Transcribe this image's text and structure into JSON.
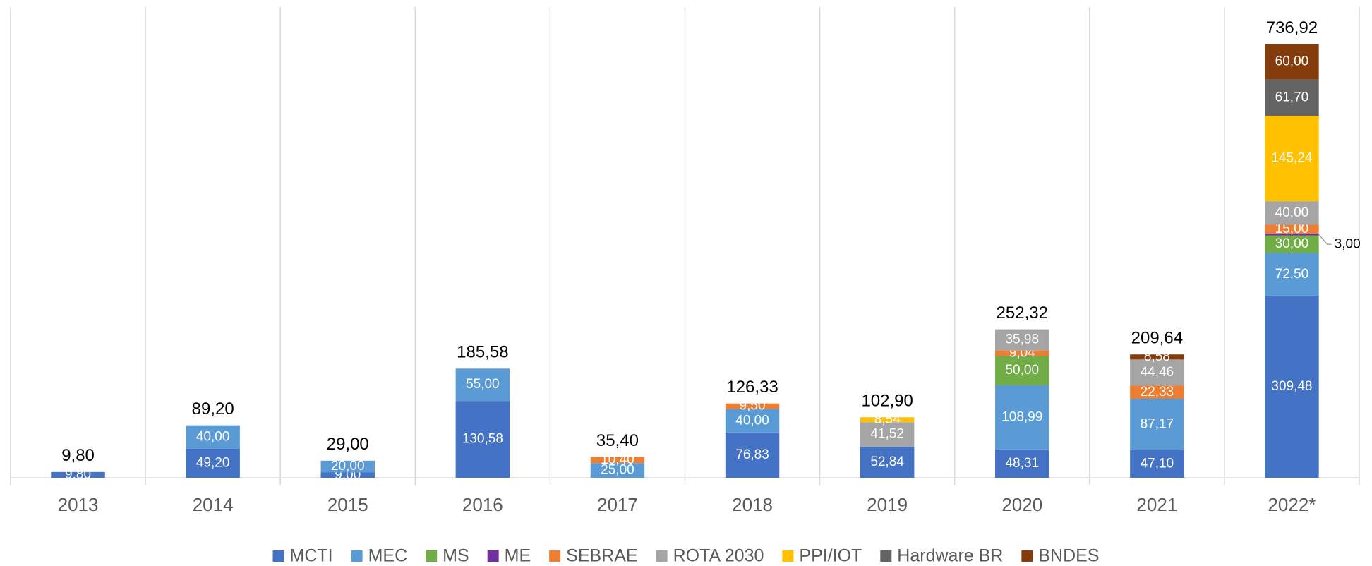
{
  "chart_data": {
    "type": "stacked_bar",
    "categories": [
      "2013",
      "2014",
      "2015",
      "2016",
      "2017",
      "2018",
      "2019",
      "2020",
      "2021",
      "2022*"
    ],
    "series": [
      {
        "name": "MCTI",
        "color": "#4472c4",
        "values": [
          9.8,
          49.2,
          9.0,
          130.58,
          null,
          76.83,
          52.84,
          48.31,
          47.1,
          309.48
        ],
        "value_labels": [
          "9,80",
          "49,20",
          "9,00",
          "130,58",
          null,
          "76,83",
          "52,84",
          "48,31",
          "47,10",
          "309,48"
        ]
      },
      {
        "name": "MEC",
        "color": "#5b9bd5",
        "values": [
          null,
          40.0,
          20.0,
          55.0,
          25.0,
          40.0,
          null,
          108.99,
          87.17,
          72.5
        ],
        "value_labels": [
          null,
          "40,00",
          "20,00",
          "55,00",
          "25,00",
          "40,00",
          null,
          "108,99",
          "87,17",
          "72,50"
        ]
      },
      {
        "name": "MS",
        "color": "#70ad47",
        "values": [
          null,
          null,
          null,
          null,
          null,
          null,
          null,
          50.0,
          null,
          30.0
        ],
        "value_labels": [
          null,
          null,
          null,
          null,
          null,
          null,
          null,
          "50,00",
          null,
          "30,00"
        ]
      },
      {
        "name": "ME",
        "color": "#7030a0",
        "values": [
          null,
          null,
          null,
          null,
          null,
          null,
          null,
          null,
          null,
          3.0
        ],
        "value_labels": [
          null,
          null,
          null,
          null,
          null,
          null,
          null,
          null,
          null,
          "3,00"
        ]
      },
      {
        "name": "SEBRAE",
        "color": "#ed7d31",
        "values": [
          null,
          null,
          null,
          null,
          10.4,
          9.5,
          null,
          9.04,
          22.33,
          15.0
        ],
        "value_labels": [
          null,
          null,
          null,
          null,
          "10,40",
          "9,50",
          null,
          "9,04",
          "22,33",
          "15,00"
        ]
      },
      {
        "name": "ROTA 2030",
        "color": "#a5a5a5",
        "values": [
          null,
          null,
          null,
          null,
          null,
          null,
          41.52,
          35.98,
          44.46,
          40.0
        ],
        "value_labels": [
          null,
          null,
          null,
          null,
          null,
          null,
          "41,52",
          "35,98",
          "44,46",
          "40,00"
        ]
      },
      {
        "name": "PPI/IOT",
        "color": "#ffc000",
        "values": [
          null,
          null,
          null,
          null,
          null,
          null,
          8.54,
          null,
          null,
          145.24
        ],
        "value_labels": [
          null,
          null,
          null,
          null,
          null,
          null,
          "8,54",
          null,
          null,
          "145,24"
        ]
      },
      {
        "name": "Hardware BR",
        "color": "#636363",
        "values": [
          null,
          null,
          null,
          null,
          null,
          null,
          null,
          null,
          null,
          61.7
        ],
        "value_labels": [
          null,
          null,
          null,
          null,
          null,
          null,
          null,
          null,
          null,
          "61,70"
        ]
      },
      {
        "name": "BNDES",
        "color": "#843c0c",
        "values": [
          null,
          null,
          null,
          null,
          null,
          null,
          null,
          null,
          8.58,
          60.0
        ],
        "value_labels": [
          null,
          null,
          null,
          null,
          null,
          null,
          null,
          null,
          "8,58",
          "60,00"
        ]
      }
    ],
    "totals": [
      9.8,
      89.2,
      29.0,
      185.58,
      35.4,
      126.33,
      102.9,
      252.32,
      209.64,
      736.92
    ],
    "total_labels": [
      "9,80",
      "89,20",
      "29,00",
      "185,58",
      "35,40",
      "126,33",
      "102,90",
      "252,32",
      "209,64",
      "736,92"
    ],
    "ylim": [
      0,
      800
    ],
    "legend": "bottom"
  }
}
